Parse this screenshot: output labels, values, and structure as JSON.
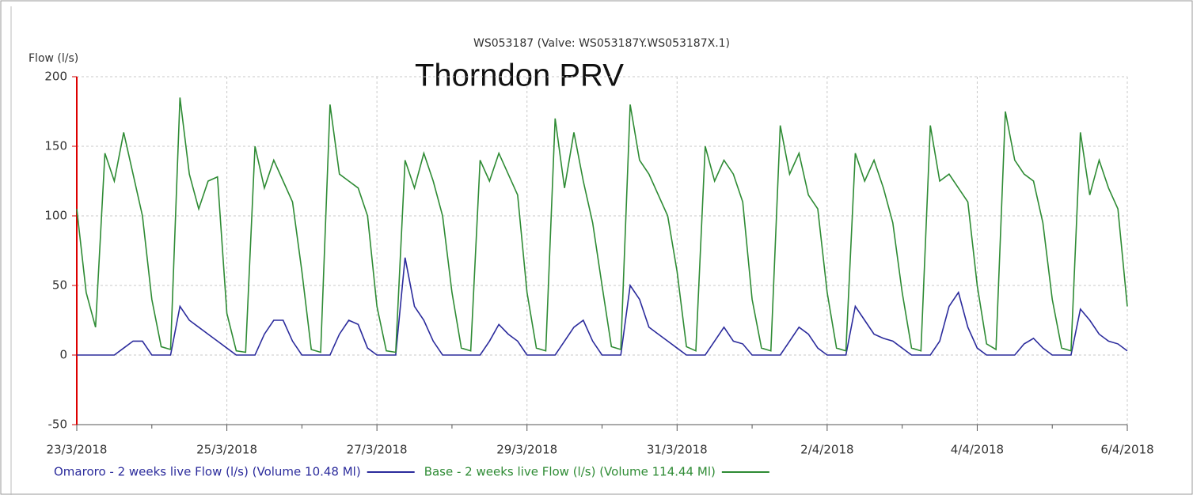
{
  "chart_data": {
    "type": "line",
    "title": "WS053187 (Valve: WS053187Y.WS053187X.1)",
    "annotation": "Thorndon PRV",
    "y_label": "Flow (l/s)",
    "xlim": [
      0,
      14
    ],
    "xticks": [
      {
        "value": 0,
        "label": "23/3/2018"
      },
      {
        "value": 2,
        "label": "25/3/2018"
      },
      {
        "value": 4,
        "label": "27/3/2018"
      },
      {
        "value": 6,
        "label": "29/3/2018"
      },
      {
        "value": 8,
        "label": "31/3/2018"
      },
      {
        "value": 10,
        "label": "2/4/2018"
      },
      {
        "value": 12,
        "label": "4/4/2018"
      },
      {
        "value": 14,
        "label": "6/4/2018"
      }
    ],
    "xminorticks": [
      1,
      3,
      5,
      7,
      9,
      11,
      13
    ],
    "ylim": [
      -50,
      200
    ],
    "yticks": [
      -50,
      0,
      50,
      100,
      150,
      200
    ],
    "grid": true,
    "x": [
      0,
      0.125,
      0.25,
      0.375,
      0.5,
      0.625,
      0.75,
      0.875,
      1,
      1.125,
      1.25,
      1.375,
      1.5,
      1.625,
      1.75,
      1.875,
      2,
      2.125,
      2.25,
      2.375,
      2.5,
      2.625,
      2.75,
      2.875,
      3,
      3.125,
      3.25,
      3.375,
      3.5,
      3.625,
      3.75,
      3.875,
      4,
      4.125,
      4.25,
      4.375,
      4.5,
      4.625,
      4.75,
      4.875,
      5,
      5.125,
      5.25,
      5.375,
      5.5,
      5.625,
      5.75,
      5.875,
      6,
      6.125,
      6.25,
      6.375,
      6.5,
      6.625,
      6.75,
      6.875,
      7,
      7.125,
      7.25,
      7.375,
      7.5,
      7.625,
      7.75,
      7.875,
      8,
      8.125,
      8.25,
      8.375,
      8.5,
      8.625,
      8.75,
      8.875,
      9,
      9.125,
      9.25,
      9.375,
      9.5,
      9.625,
      9.75,
      9.875,
      10,
      10.125,
      10.25,
      10.375,
      10.5,
      10.625,
      10.75,
      10.875,
      11,
      11.125,
      11.25,
      11.375,
      11.5,
      11.625,
      11.75,
      11.875,
      12,
      12.125,
      12.25,
      12.375,
      12.5,
      12.625,
      12.75,
      12.875,
      13,
      13.125,
      13.25,
      13.375,
      13.5,
      13.625,
      13.75,
      13.875,
      14
    ],
    "series": [
      {
        "name": "Omaroro - 2 weeks live Flow (l/s) (Volume 10.48 Ml)",
        "color": "#2b2b9c",
        "values": [
          0,
          0,
          0,
          0,
          0,
          5,
          10,
          10,
          0,
          0,
          0,
          35,
          25,
          20,
          15,
          10,
          5,
          0,
          0,
          0,
          15,
          25,
          25,
          10,
          0,
          0,
          0,
          0,
          15,
          25,
          22,
          5,
          0,
          0,
          0,
          70,
          35,
          25,
          10,
          0,
          0,
          0,
          0,
          0,
          10,
          22,
          15,
          10,
          0,
          0,
          0,
          0,
          10,
          20,
          25,
          10,
          0,
          0,
          0,
          50,
          40,
          20,
          15,
          10,
          5,
          0,
          0,
          0,
          10,
          20,
          10,
          8,
          0,
          0,
          0,
          0,
          10,
          20,
          15,
          5,
          0,
          0,
          0,
          35,
          25,
          15,
          12,
          10,
          5,
          0,
          0,
          0,
          10,
          35,
          45,
          20,
          5,
          0,
          0,
          0,
          0,
          8,
          12,
          5,
          0,
          0,
          0,
          33,
          25,
          15,
          10,
          8,
          3
        ]
      },
      {
        "name": "Base - 2 weeks live Flow (l/s) (Volume 114.44 Ml)",
        "color": "#2e8b34",
        "values": [
          105,
          45,
          20,
          145,
          125,
          160,
          130,
          100,
          40,
          6,
          4,
          185,
          130,
          105,
          125,
          128,
          30,
          3,
          2,
          150,
          120,
          140,
          125,
          110,
          60,
          4,
          2,
          180,
          130,
          125,
          120,
          100,
          35,
          3,
          2,
          140,
          120,
          145,
          125,
          100,
          45,
          5,
          3,
          140,
          125,
          145,
          130,
          115,
          45,
          5,
          3,
          170,
          120,
          160,
          125,
          95,
          50,
          6,
          4,
          180,
          140,
          130,
          115,
          100,
          60,
          6,
          3,
          150,
          125,
          140,
          130,
          110,
          40,
          5,
          3,
          165,
          130,
          145,
          115,
          105,
          45,
          5,
          3,
          145,
          125,
          140,
          120,
          95,
          45,
          5,
          3,
          165,
          125,
          130,
          120,
          110,
          50,
          8,
          4,
          175,
          140,
          130,
          125,
          95,
          40,
          5,
          3,
          160,
          115,
          140,
          120,
          105,
          35
        ]
      }
    ]
  }
}
